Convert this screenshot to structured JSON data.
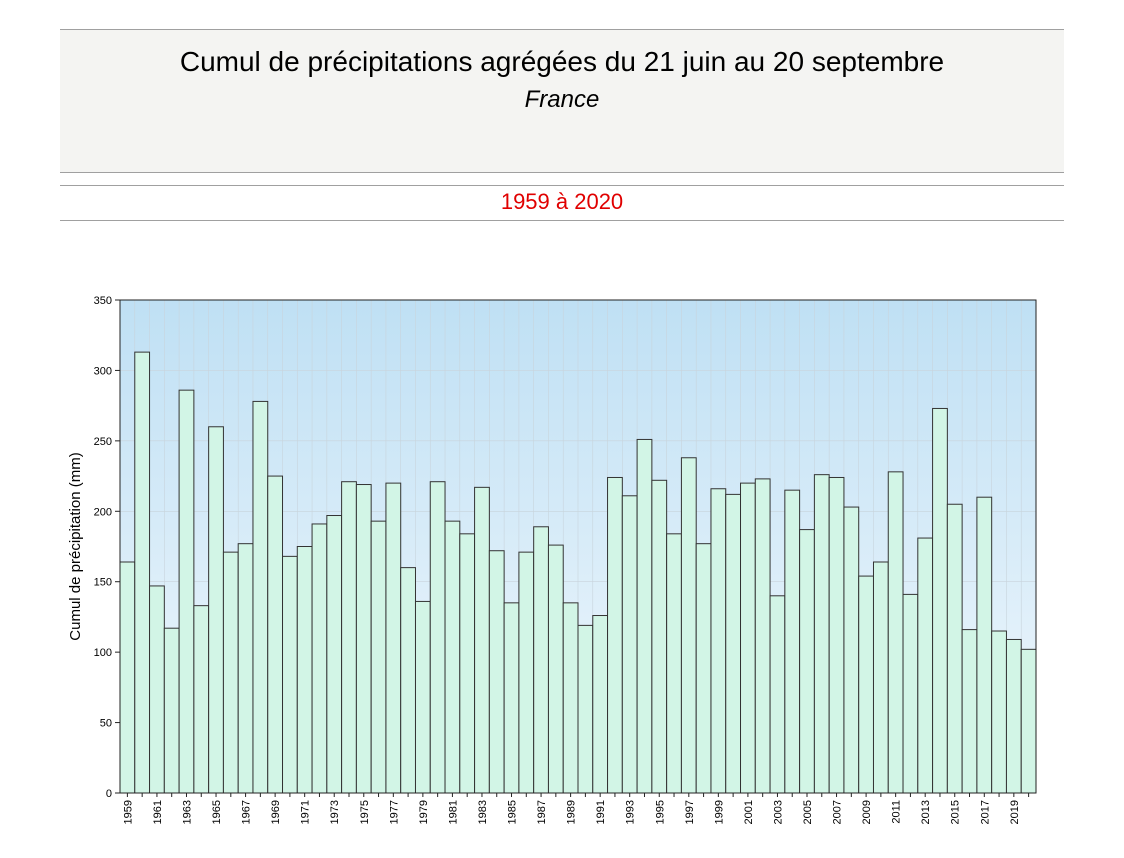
{
  "header": {
    "title": "Cumul de précipitations agrégées du 21 juin au 20 septembre",
    "subtitle": "France",
    "period": "1959 à 2020"
  },
  "colors": {
    "bar_fill": "#d2f5e6",
    "bar_stroke": "#333333",
    "plot_bg_top": "#bfe0f4",
    "plot_bg_bottom": "#f2f8fd",
    "period_text": "#e00000"
  },
  "chart_data": {
    "type": "bar",
    "title": "Cumul de précipitations agrégées du 21 juin au 20 septembre",
    "ylabel": "Cumul de précipitation (mm)",
    "xlabel": "",
    "ylim": [
      0,
      350
    ],
    "yticks": [
      0,
      50,
      100,
      150,
      200,
      250,
      300,
      350
    ],
    "grid": true,
    "legend": "none",
    "categories": [
      "1959",
      "1960",
      "1961",
      "1962",
      "1963",
      "1964",
      "1965",
      "1966",
      "1967",
      "1968",
      "1969",
      "1970",
      "1971",
      "1972",
      "1973",
      "1974",
      "1975",
      "1976",
      "1977",
      "1978",
      "1979",
      "1980",
      "1981",
      "1982",
      "1983",
      "1984",
      "1985",
      "1986",
      "1987",
      "1988",
      "1989",
      "1990",
      "1991",
      "1992",
      "1993",
      "1994",
      "1995",
      "1996",
      "1997",
      "1998",
      "1999",
      "2000",
      "2001",
      "2002",
      "2003",
      "2004",
      "2005",
      "2006",
      "2007",
      "2008",
      "2009",
      "2010",
      "2011",
      "2012",
      "2013",
      "2014",
      "2015",
      "2016",
      "2017",
      "2018",
      "2019",
      "2020"
    ],
    "tick_labels": [
      "1959",
      "1961",
      "1963",
      "1965",
      "1967",
      "1969",
      "1971",
      "1973",
      "1975",
      "1977",
      "1979",
      "1981",
      "1983",
      "1985",
      "1987",
      "1989",
      "1991",
      "1993",
      "1995",
      "1997",
      "1999",
      "2001",
      "2003",
      "2005",
      "2007",
      "2009",
      "2011",
      "2013",
      "2015",
      "2017",
      "2019"
    ],
    "values": [
      164,
      313,
      147,
      117,
      286,
      133,
      260,
      171,
      177,
      278,
      225,
      168,
      175,
      191,
      197,
      221,
      219,
      193,
      220,
      160,
      136,
      221,
      193,
      184,
      217,
      172,
      135,
      171,
      189,
      176,
      135,
      119,
      126,
      224,
      211,
      251,
      222,
      184,
      238,
      177,
      216,
      212,
      220,
      223,
      140,
      215,
      187,
      226,
      224,
      203,
      154,
      164,
      228,
      141,
      181,
      273,
      205,
      116,
      210,
      115,
      109,
      102
    ]
  }
}
